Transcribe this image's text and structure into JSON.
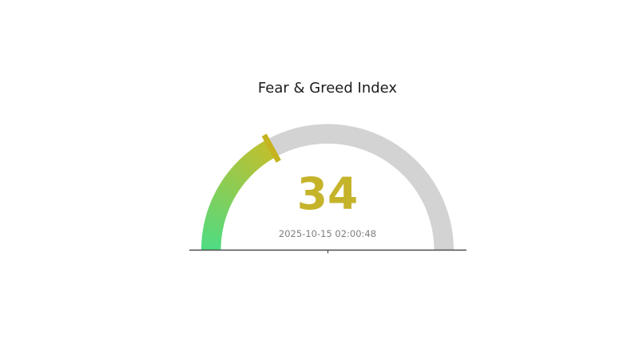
{
  "chart_data": {
    "type": "gauge",
    "title": "Fear & Greed Index",
    "value": 34,
    "min": 0,
    "max": 100,
    "timestamp": "2025-10-15 02:00:48",
    "layout": {
      "start_angle_deg": 180,
      "end_angle_deg": 0,
      "legend": "none",
      "grid": "off"
    },
    "colors": {
      "gradient_start": "#4edc83",
      "gradient_end": "#c2bf2d",
      "track": "#d3d3d3",
      "needle": "#c5b31f",
      "value_text": "#c5b32a",
      "timestamp_text": "#7f7f7f",
      "title_text": "#1c1c1c",
      "axis_line": "#4d4d4d",
      "background": "#ffffff"
    }
  }
}
